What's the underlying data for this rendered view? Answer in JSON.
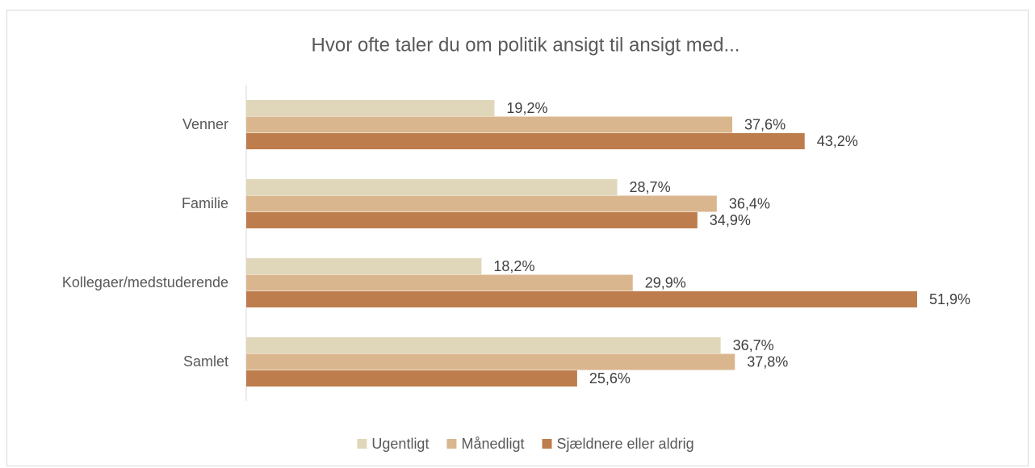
{
  "chart_data": {
    "type": "hbar",
    "title": "Hvor ofte taler du om politik ansigt til ansigt med...",
    "categories": [
      "Venner",
      "Familie",
      "Kollegaer/medstuderende",
      "Samlet"
    ],
    "series": [
      {
        "name": "Ugentligt",
        "color": "#e0d7bb",
        "values": [
          19.2,
          28.7,
          18.2,
          36.7
        ],
        "value_labels": [
          "19,2%",
          "28,7%",
          "18,2%",
          "36,7%"
        ]
      },
      {
        "name": "Månedligt",
        "color": "#d9b68e",
        "values": [
          37.6,
          36.4,
          29.9,
          37.8
        ],
        "value_labels": [
          "37,6%",
          "36,4%",
          "29,9%",
          "37,8%"
        ]
      },
      {
        "name": "Sjældnere eller aldrig",
        "color": "#bd7d4d",
        "values": [
          43.2,
          34.9,
          51.9,
          25.6
        ],
        "value_labels": [
          "43,2%",
          "34,9%",
          "51,9%",
          "25,6%"
        ]
      }
    ],
    "legend": "bottom"
  }
}
